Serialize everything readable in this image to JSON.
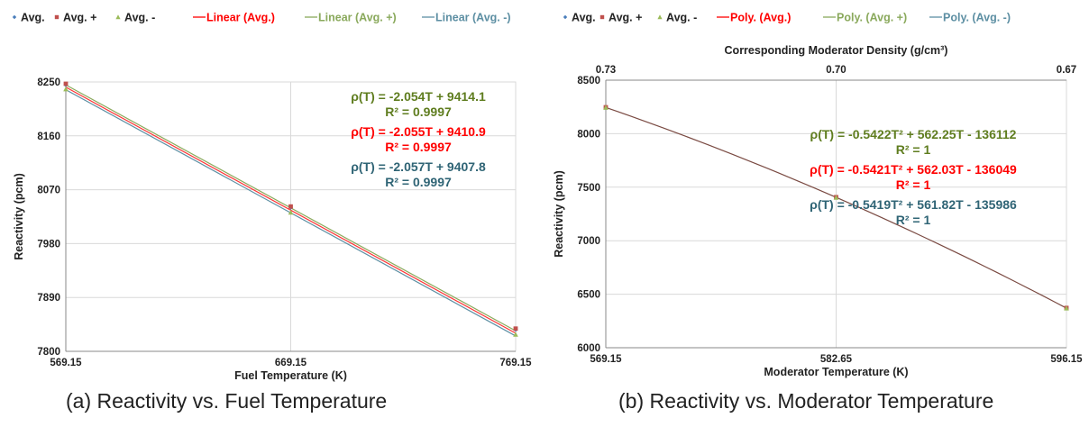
{
  "colors": {
    "avg": "#4a7ebb",
    "avg_plus": "#c0504d",
    "avg_minus": "#9bbb59",
    "red_text": "#ff0000",
    "green_text": "#5f7d1f",
    "blue_text": "#2f6475",
    "line_red": "#ff3333",
    "line_green": "#8aa95c",
    "line_blue": "#5d8fa3",
    "line_brown": "#7a4a42",
    "grid": "#d9d9d9",
    "axis": "#888888"
  },
  "chart_data": [
    {
      "id": "a",
      "type": "scatter",
      "caption": "(a) Reactivity vs. Fuel Temperature",
      "xlabel": "Fuel Temperature (K)",
      "ylabel": "Reactivity (pcm)",
      "xlim": [
        569.15,
        769.15
      ],
      "ylim": [
        7800,
        8250
      ],
      "xticks": [
        "569.15",
        "669.15",
        "769.15"
      ],
      "yticks": [
        "7800",
        "7890",
        "7980",
        "8070",
        "8160",
        "8250"
      ],
      "legend": {
        "markers": [
          {
            "label": "Avg.",
            "color": "#4a7ebb",
            "shape": "diamond"
          },
          {
            "label": "Avg. +",
            "color": "#c0504d",
            "shape": "square"
          },
          {
            "label": "Avg. -",
            "color": "#9bbb59",
            "shape": "triangle"
          }
        ],
        "lines": [
          {
            "label": "Linear (Avg.)",
            "color": "#ff0000"
          },
          {
            "label": "Linear (Avg. +)",
            "color": "#8aa95c"
          },
          {
            "label": "Linear (Avg. -)",
            "color": "#5d8fa3"
          }
        ]
      },
      "x": [
        569.15,
        669.15,
        769.15
      ],
      "series": [
        {
          "name": "Avg.",
          "values": [
            8245,
            8040,
            7836
          ],
          "color": "#4a7ebb",
          "shape": "diamond"
        },
        {
          "name": "Avg. +",
          "values": [
            8247,
            8042,
            7838
          ],
          "color": "#c0504d",
          "shape": "square"
        },
        {
          "name": "Avg. -",
          "values": [
            8238,
            8032,
            7828
          ],
          "color": "#9bbb59",
          "shape": "triangle"
        }
      ],
      "fits": [
        {
          "name": "Linear (Avg.)",
          "color": "#ff3333",
          "coeffs": [
            -2.055,
            9410.9
          ]
        },
        {
          "name": "Linear (Avg. +)",
          "color": "#8aa95c",
          "coeffs": [
            -2.054,
            9414.1
          ]
        },
        {
          "name": "Linear (Avg. -)",
          "color": "#5d8fa3",
          "coeffs": [
            -2.057,
            9407.8
          ]
        }
      ],
      "annotations": [
        {
          "text": "ρ(T) = -2.054T + 9414.1",
          "color": "#5f7d1f"
        },
        {
          "text": "R² = 0.9997",
          "color": "#5f7d1f"
        },
        {
          "text": "ρ(T) = -2.055T + 9410.9",
          "color": "#ff0000"
        },
        {
          "text": "R² = 0.9997",
          "color": "#ff0000"
        },
        {
          "text": "ρ(T) = -2.057T + 9407.8",
          "color": "#2f6475"
        },
        {
          "text": "R² = 0.9997",
          "color": "#2f6475"
        }
      ],
      "grid": true
    },
    {
      "id": "b",
      "type": "scatter",
      "caption": "(b) Reactivity vs. Moderator Temperature",
      "xlabel": "Moderator Temperature (K)",
      "ylabel": "Reactivity (pcm)",
      "x2label": "Corresponding Moderator Density (g/cm³)",
      "xlim": [
        569.15,
        596.15
      ],
      "ylim": [
        6000,
        8500
      ],
      "xticks": [
        "569.15",
        "582.65",
        "596.15"
      ],
      "x2ticks": [
        "0.73",
        "0.70",
        "0.67"
      ],
      "yticks": [
        "6000",
        "6500",
        "7000",
        "7500",
        "8000",
        "8500"
      ],
      "legend": {
        "markers": [
          {
            "label": "Avg.",
            "color": "#4a7ebb",
            "shape": "diamond"
          },
          {
            "label": "Avg. +",
            "color": "#c0504d",
            "shape": "square"
          },
          {
            "label": "Avg. -",
            "color": "#9bbb59",
            "shape": "triangle"
          }
        ],
        "lines": [
          {
            "label": "Poly. (Avg.)",
            "color": "#ff0000"
          },
          {
            "label": "Poly. (Avg. +)",
            "color": "#8aa95c"
          },
          {
            "label": "Poly. (Avg. -)",
            "color": "#5d8fa3"
          }
        ]
      },
      "x": [
        569.15,
        582.65,
        596.15
      ],
      "series": [
        {
          "name": "Avg.",
          "values": [
            8245,
            7405,
            6370
          ],
          "color": "#4a7ebb",
          "shape": "diamond"
        },
        {
          "name": "Avg. +",
          "values": [
            8247,
            7407,
            6372
          ],
          "color": "#c0504d",
          "shape": "square"
        },
        {
          "name": "Avg. -",
          "values": [
            8243,
            7403,
            6368
          ],
          "color": "#9bbb59",
          "shape": "triangle"
        }
      ],
      "fits": [
        {
          "name": "Poly. (Avg.)",
          "color": "#7a4a42",
          "points": [
            8245,
            7405,
            6370
          ]
        }
      ],
      "annotations": [
        {
          "text": "ρ(T) = -0.5422T² + 562.25T - 136112",
          "color": "#5f7d1f"
        },
        {
          "text": "R² = 1",
          "color": "#5f7d1f"
        },
        {
          "text": "ρ(T) = -0.5421T² + 562.03T - 136049",
          "color": "#ff0000"
        },
        {
          "text": "R² = 1",
          "color": "#ff0000"
        },
        {
          "text": "ρ(T) = -0.5419T² + 561.82T - 135986",
          "color": "#2f6475"
        },
        {
          "text": "R² = 1",
          "color": "#2f6475"
        }
      ],
      "grid": true
    }
  ]
}
